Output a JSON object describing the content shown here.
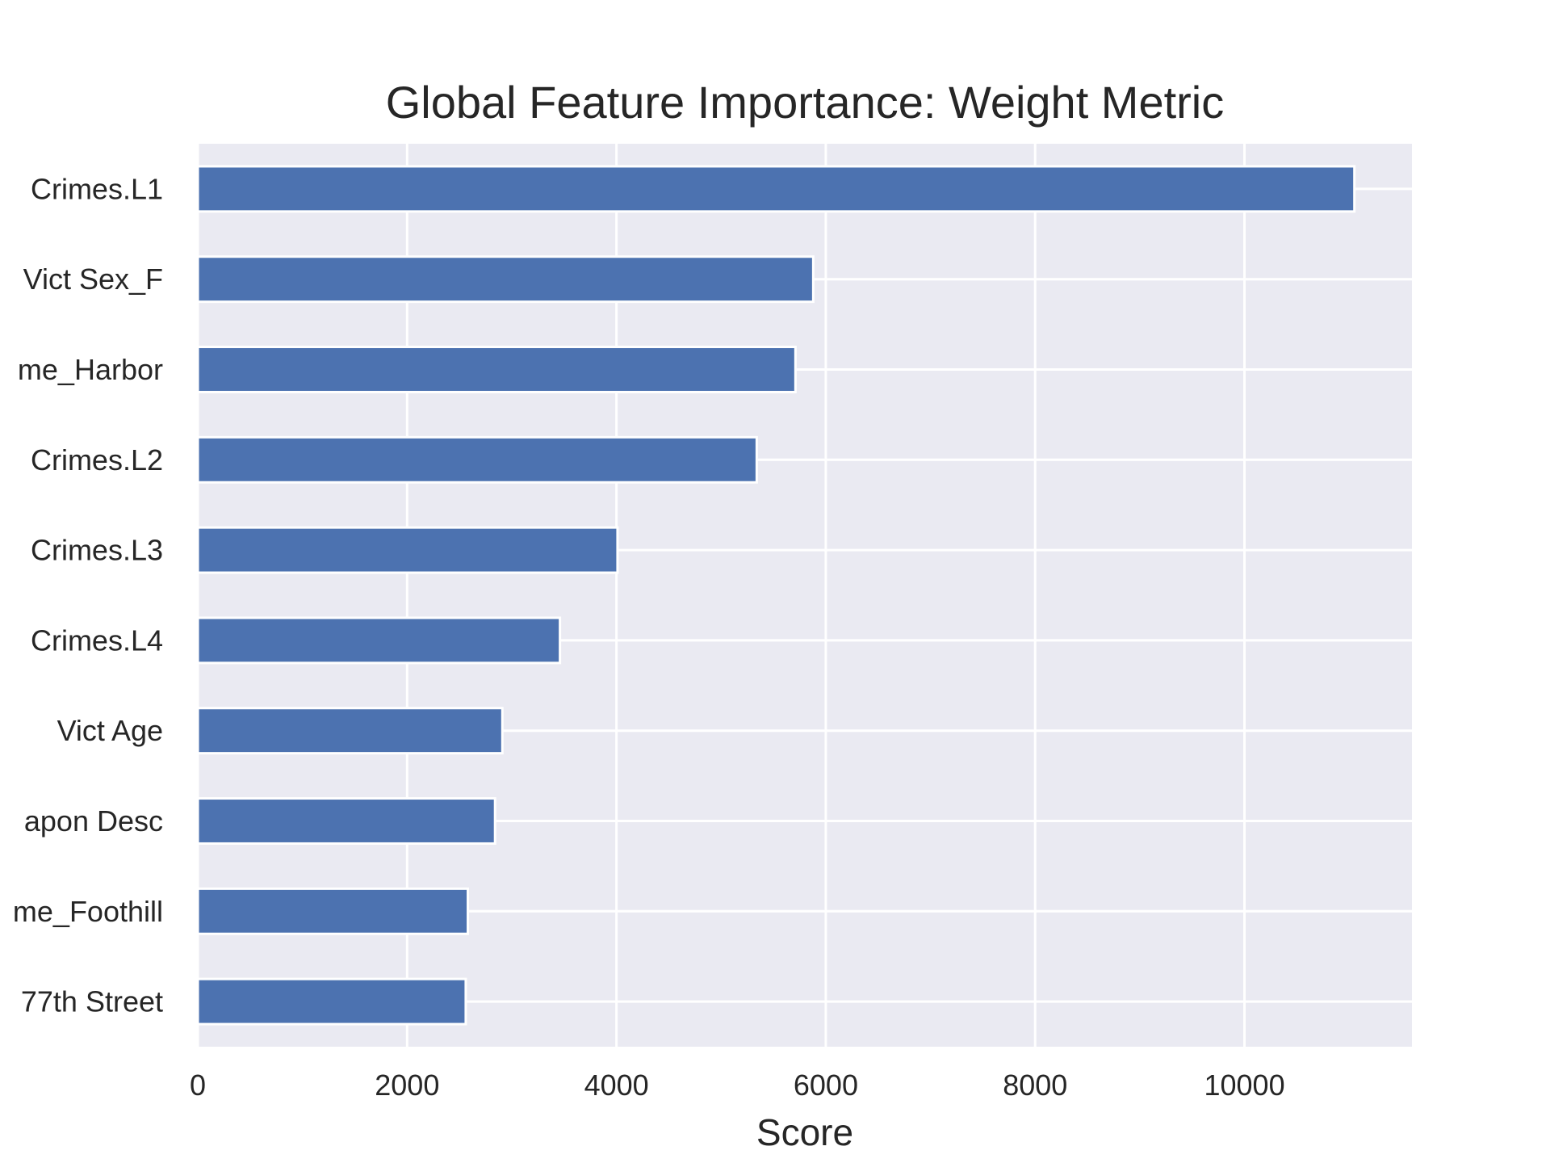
{
  "chart_data": {
    "type": "bar",
    "orientation": "horizontal",
    "title": "Global Feature Importance: Weight Metric",
    "xlabel": "Score",
    "ylabel": "",
    "xlim": [
      0,
      11600
    ],
    "xticks": [
      0,
      2000,
      4000,
      6000,
      8000,
      10000
    ],
    "xtick_labels": [
      "0",
      "2000",
      "4000",
      "6000",
      "8000",
      "10000"
    ],
    "grid": true,
    "categories": [
      "Crimes.L1",
      "Vict Sex_F",
      "me_Harbor",
      "Crimes.L2",
      "Crimes.L3",
      "Crimes.L4",
      "Vict Age",
      "apon Desc",
      "me_Foothill",
      "77th Street"
    ],
    "values": [
      11050,
      5880,
      5710,
      5340,
      4010,
      3460,
      2910,
      2840,
      2580,
      2560
    ],
    "colors": {
      "bar": "#4c72b0",
      "plot_background": "#eaeaf2",
      "grid": "#ffffff",
      "text": "#262626"
    }
  }
}
